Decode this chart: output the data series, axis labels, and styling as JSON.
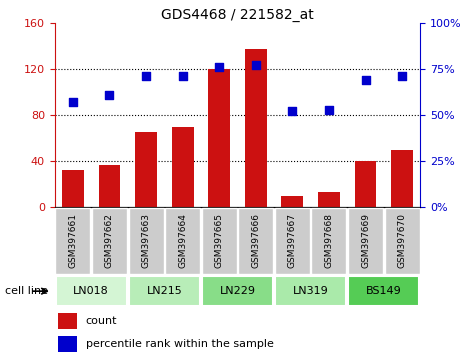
{
  "title": "GDS4468 / 221582_at",
  "samples": [
    "GSM397661",
    "GSM397662",
    "GSM397663",
    "GSM397664",
    "GSM397665",
    "GSM397666",
    "GSM397667",
    "GSM397668",
    "GSM397669",
    "GSM397670"
  ],
  "counts": [
    32,
    37,
    65,
    70,
    120,
    137,
    10,
    13,
    40,
    50
  ],
  "percentile_ranks": [
    57,
    61,
    71,
    71,
    76,
    77,
    52,
    53,
    69,
    71
  ],
  "cell_lines": [
    {
      "label": "LN018",
      "start": 0,
      "end": 2,
      "color": "#d4f5d4"
    },
    {
      "label": "LN215",
      "start": 2,
      "end": 4,
      "color": "#b8edb8"
    },
    {
      "label": "LN229",
      "start": 4,
      "end": 6,
      "color": "#88dd88"
    },
    {
      "label": "LN319",
      "start": 6,
      "end": 8,
      "color": "#aaeaaa"
    },
    {
      "label": "BS149",
      "start": 8,
      "end": 10,
      "color": "#55cc55"
    }
  ],
  "bar_color": "#cc1111",
  "scatter_color": "#0000cc",
  "left_ylim": [
    0,
    160
  ],
  "left_yticks": [
    0,
    40,
    80,
    120,
    160
  ],
  "right_ylim": [
    0,
    100
  ],
  "right_yticks": [
    0,
    25,
    50,
    75,
    100
  ],
  "right_yticklabels": [
    "0%",
    "25%",
    "50%",
    "75%",
    "100%"
  ],
  "grid_values": [
    40,
    80,
    120
  ],
  "legend_count_color": "#cc1111",
  "legend_pct_color": "#0000cc",
  "cell_line_label": "cell line",
  "legend_count_label": "count",
  "legend_pct_label": "percentile rank within the sample",
  "tick_bg_color": "#cccccc"
}
